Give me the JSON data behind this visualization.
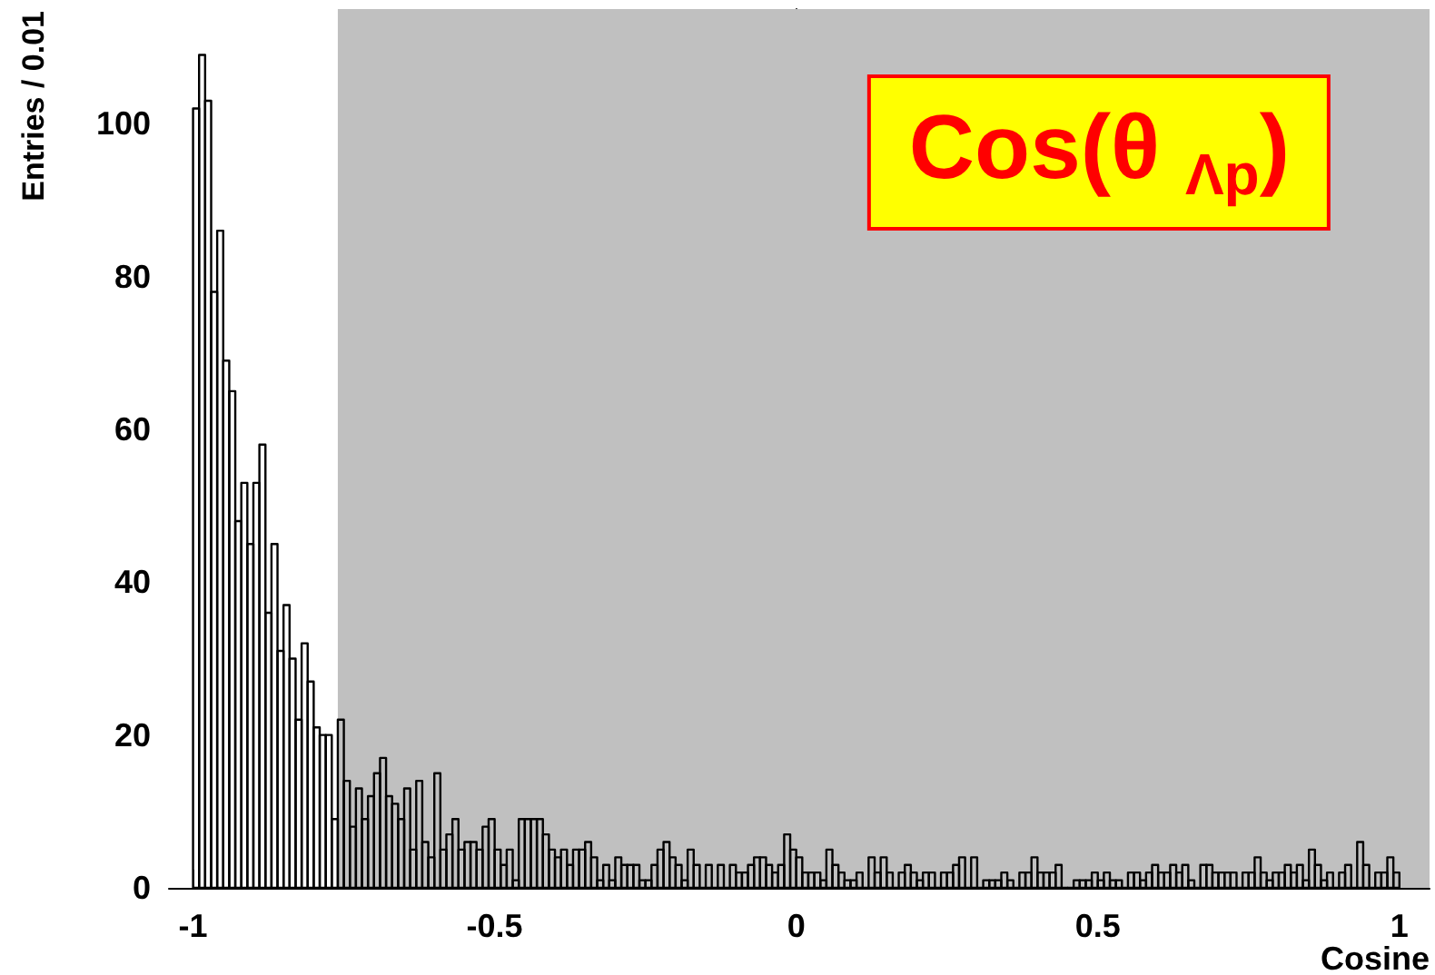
{
  "chart_data": {
    "type": "histogram",
    "title": "Cos(θ $_{Λp}$)",
    "xlabel": "Cosine",
    "ylabel": "Entries / 0.01",
    "color": "#000000",
    "bins": [
      -1,
      -0.99,
      -0.98,
      -0.97,
      -0.96,
      -0.95,
      -0.94,
      -0.93,
      -0.92,
      -0.91,
      -0.9,
      -0.89,
      -0.88,
      -0.87,
      -0.86,
      -0.85,
      -0.84,
      -0.83,
      -0.82,
      -0.81,
      -0.8,
      -0.79,
      -0.78,
      -0.77,
      -0.76,
      -0.75,
      -0.74,
      -0.73,
      -0.72,
      -0.71,
      -0.7,
      -0.69,
      -0.68,
      -0.67,
      -0.66,
      -0.65,
      -0.64,
      -0.63,
      -0.62,
      -0.61,
      -0.6,
      -0.59,
      -0.58,
      -0.57,
      -0.56,
      -0.55,
      -0.54,
      -0.53,
      -0.52,
      -0.51,
      -0.5,
      -0.49,
      -0.48,
      -0.47,
      -0.46,
      -0.45,
      -0.44,
      -0.43,
      -0.42,
      -0.41,
      -0.4,
      -0.39,
      -0.38,
      -0.37,
      -0.36,
      -0.35,
      -0.34,
      -0.33,
      -0.32,
      -0.31,
      -0.3,
      -0.29,
      -0.28,
      -0.27,
      -0.26,
      -0.25,
      -0.24,
      -0.23,
      -0.22,
      -0.21,
      -0.2,
      -0.19,
      -0.18,
      -0.17,
      -0.16,
      -0.15,
      -0.14,
      -0.13,
      -0.12,
      -0.11,
      -0.1,
      -0.09,
      -0.08,
      -0.07,
      -0.06,
      -0.05,
      -0.04,
      -0.03,
      -0.02,
      -0.01,
      0,
      0.01,
      0.02,
      0.03,
      0.04,
      0.05,
      0.06,
      0.07,
      0.08,
      0.09,
      0.1,
      0.11,
      0.12,
      0.13,
      0.14,
      0.15,
      0.16,
      0.17,
      0.18,
      0.19,
      0.2,
      0.21,
      0.22,
      0.23,
      0.24,
      0.25,
      0.26,
      0.27,
      0.28,
      0.29,
      0.3,
      0.31,
      0.32,
      0.33,
      0.34,
      0.35,
      0.36,
      0.37,
      0.38,
      0.39,
      0.4,
      0.41,
      0.42,
      0.43,
      0.44,
      0.45,
      0.46,
      0.47,
      0.48,
      0.49,
      0.5,
      0.51,
      0.52,
      0.53,
      0.54,
      0.55,
      0.56,
      0.57,
      0.58,
      0.59,
      0.6,
      0.61,
      0.62,
      0.63,
      0.64,
      0.65,
      0.66,
      0.67,
      0.68,
      0.69,
      0.7,
      0.71,
      0.72,
      0.73,
      0.74,
      0.75,
      0.76,
      0.77,
      0.78,
      0.79,
      0.8,
      0.81,
      0.82,
      0.83,
      0.84,
      0.85,
      0.86,
      0.87,
      0.88,
      0.89,
      0.9,
      0.91,
      0.92,
      0.93,
      0.94,
      0.95,
      0.96,
      0.97,
      0.98,
      0.99,
      1
    ],
    "values": [
      102,
      109,
      103,
      78,
      86,
      69,
      65,
      48,
      53,
      45,
      53,
      58,
      36,
      45,
      31,
      37,
      30,
      22,
      32,
      27,
      21,
      20,
      20,
      9,
      22,
      14,
      8,
      13,
      9,
      12,
      15,
      17,
      12,
      11,
      9,
      13,
      5,
      14,
      6,
      4,
      15,
      5,
      7,
      9,
      5,
      6,
      6,
      5,
      8,
      9,
      5,
      3,
      5,
      1,
      9,
      9,
      9,
      9,
      7,
      5,
      4,
      5,
      3,
      5,
      5,
      6,
      4,
      1,
      3,
      1,
      4,
      3,
      3,
      3,
      1,
      1,
      3,
      5,
      6,
      4,
      3,
      1,
      5,
      3,
      0,
      3,
      0,
      3,
      0,
      3,
      2,
      2,
      3,
      4,
      4,
      3,
      2,
      3,
      7,
      5,
      4,
      2,
      2,
      2,
      1,
      5,
      3,
      2,
      1,
      1,
      2,
      0,
      4,
      2,
      4,
      2,
      0,
      2,
      3,
      2,
      1,
      2,
      2,
      0,
      2,
      2,
      3,
      4,
      0,
      4,
      0,
      1,
      1,
      1,
      2,
      1,
      0,
      2,
      2,
      4,
      2,
      2,
      2,
      3,
      0,
      0,
      1,
      1,
      1,
      2,
      1,
      2,
      1,
      1,
      0,
      2,
      2,
      1,
      2,
      3,
      2,
      2,
      3,
      2,
      3,
      1,
      0,
      3,
      3,
      2,
      2,
      2,
      2,
      0,
      2,
      2,
      4,
      2,
      1,
      2,
      2,
      3,
      2,
      3,
      1,
      5,
      3,
      1,
      2,
      0,
      2,
      3,
      0,
      6,
      3,
      0,
      2,
      2,
      4,
      2
    ],
    "xlim": [
      -1.04,
      1.05
    ],
    "ylim": [
      0,
      115
    ],
    "xticks": [
      -1,
      -0.5,
      0,
      0.5,
      1
    ],
    "yticks": [
      0,
      20,
      40,
      60,
      80,
      100
    ],
    "bands": [
      {
        "axis": "x",
        "from": -0.76,
        "to": 1.05,
        "color": "#c0c0c0"
      }
    ]
  }
}
